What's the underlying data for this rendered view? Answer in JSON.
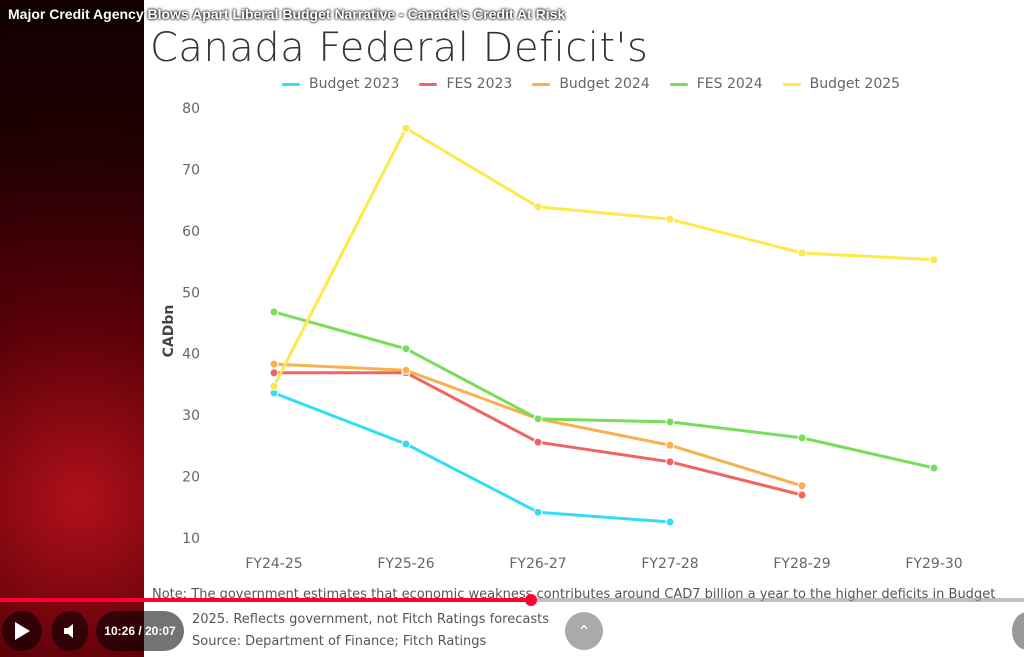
{
  "video": {
    "title": "Major Credit Agency Blows Apart Liberal Budget Narrative - Canada's Credit At Risk",
    "current_time": "10:26",
    "duration": "20:07",
    "time_display": "10:26 / 20:07",
    "progress_percent": 51.9,
    "icons": {
      "play": "play-icon",
      "volume": "volume-icon",
      "up": "chevron-up-icon"
    },
    "accent_color": "#ff0033"
  },
  "chart_data": {
    "type": "line",
    "title": "Canada Federal Deficit's",
    "ylabel": "CADbn",
    "xlabel": "",
    "categories": [
      "FY24-25",
      "FY25-26",
      "FY26-27",
      "FY27-28",
      "FY28-29",
      "FY29-30"
    ],
    "ylim": [
      10,
      80
    ],
    "yticks": [
      "10",
      "20",
      "30",
      "40",
      "50",
      "60",
      "70",
      "80"
    ],
    "grid": false,
    "legend_position": "top",
    "series": [
      {
        "name": "Budget 2023",
        "color": "#33ddf5",
        "values": [
          33.6,
          25.3,
          14.2,
          12.6,
          null,
          null
        ]
      },
      {
        "name": "FES 2023",
        "color": "#f26464",
        "values": [
          36.9,
          36.9,
          25.6,
          22.4,
          17.0,
          null
        ]
      },
      {
        "name": "Budget 2024",
        "color": "#f8b050",
        "values": [
          38.3,
          37.3,
          29.4,
          25.1,
          18.5,
          null
        ]
      },
      {
        "name": "FES 2024",
        "color": "#77dd5a",
        "values": [
          46.8,
          40.8,
          29.4,
          28.9,
          26.3,
          21.4
        ]
      },
      {
        "name": "Budget 2025",
        "color": "#fde94a",
        "values": [
          34.7,
          76.7,
          63.9,
          61.9,
          56.4,
          55.3
        ]
      }
    ],
    "note_line1": "Note: The government estimates that economic weakness contributes around CAD7 billion a year to the higher deficits in Budget",
    "note_line2": "2025. Reflects government, not Fitch Ratings forecasts",
    "source": "Source: Department of Finance; Fitch Ratings"
  }
}
